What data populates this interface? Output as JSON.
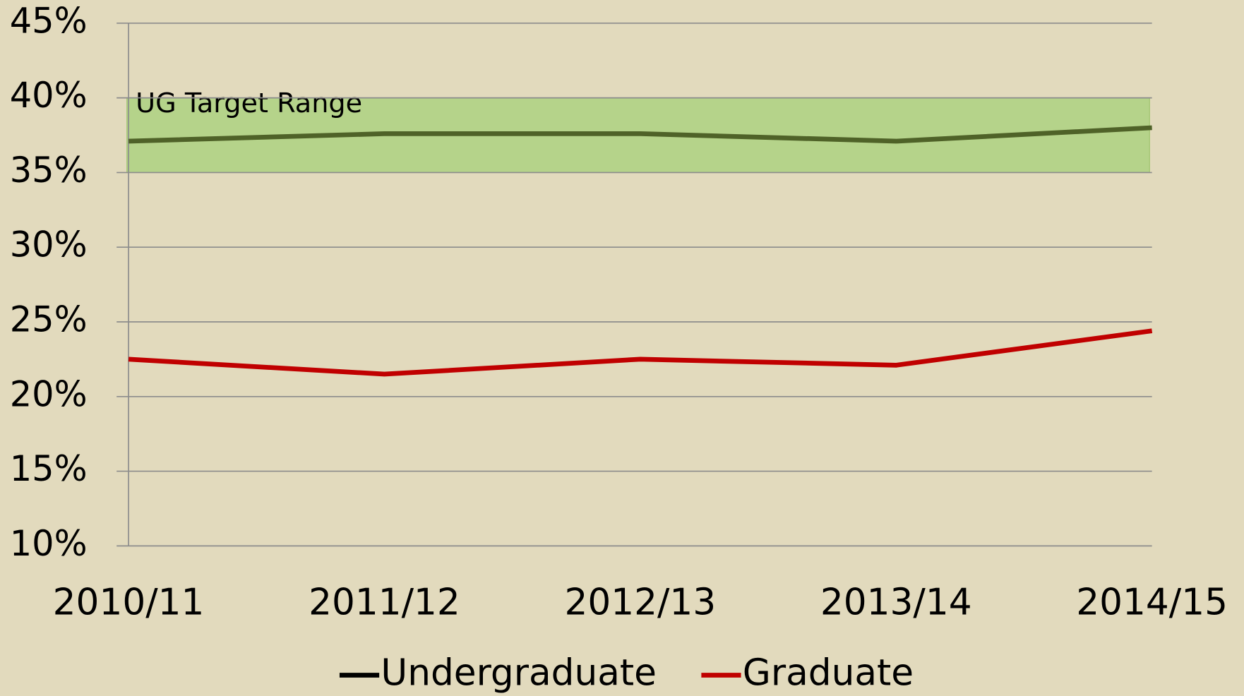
{
  "chart_data": {
    "type": "line",
    "categories": [
      "2010/11",
      "2011/12",
      "2012/13",
      "2013/14",
      "2014/15"
    ],
    "series": [
      {
        "name": "Undergraduate",
        "color": "#4f6228",
        "legend_color": "#000000",
        "values": [
          37.1,
          37.6,
          37.6,
          37.1,
          38.0
        ]
      },
      {
        "name": "Graduate",
        "color": "#c00000",
        "values": [
          22.5,
          21.5,
          22.5,
          22.1,
          24.4
        ]
      }
    ],
    "target_range": {
      "label": "UG Target Range",
      "values": [
        35,
        40
      ],
      "color": "#b5d38a"
    },
    "ylim": [
      10,
      45
    ],
    "yticks": [
      {
        "value": 10,
        "label": "10%"
      },
      {
        "value": 15,
        "label": "15%"
      },
      {
        "value": 20,
        "label": "20%"
      },
      {
        "value": 25,
        "label": "25%"
      },
      {
        "value": 30,
        "label": "30%"
      },
      {
        "value": 35,
        "label": "35%"
      },
      {
        "value": 40,
        "label": "40%"
      },
      {
        "value": 45,
        "label": "45%"
      }
    ],
    "grid": true,
    "legend": "bottom"
  }
}
